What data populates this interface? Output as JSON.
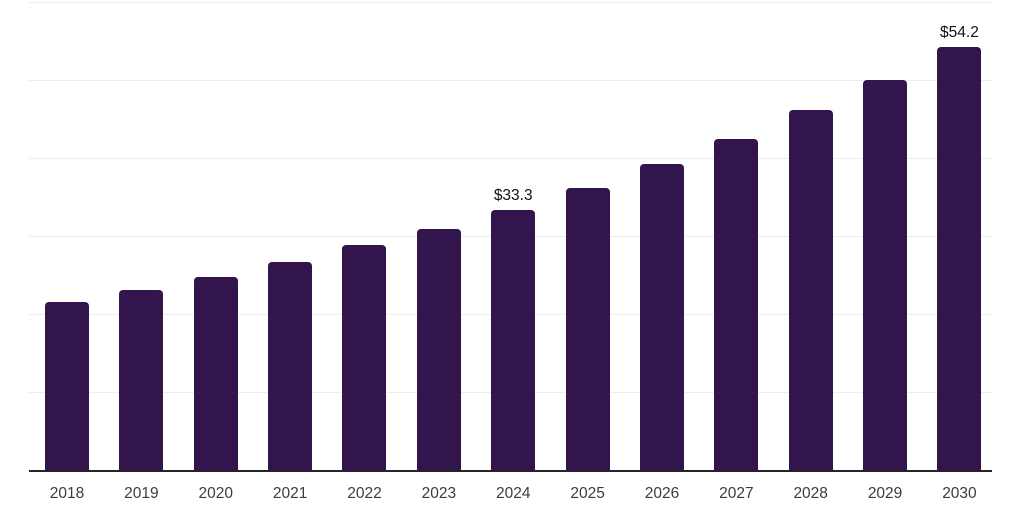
{
  "chart_data": {
    "type": "bar",
    "title": "",
    "xlabel": "",
    "ylabel": "",
    "categories": [
      "2018",
      "2019",
      "2020",
      "2021",
      "2022",
      "2023",
      "2024",
      "2025",
      "2026",
      "2027",
      "2028",
      "2029",
      "2030"
    ],
    "values": [
      21.5,
      23.1,
      24.8,
      26.7,
      28.8,
      30.9,
      33.3,
      36.1,
      39.2,
      42.5,
      46.1,
      50.0,
      54.2
    ],
    "data_labels": {
      "2024": "$33.3",
      "2030": "$54.2"
    },
    "ylim": [
      0,
      60
    ],
    "grid_step": 10,
    "grid": "horizontal-only",
    "y_tick_labels_visible": false,
    "legend": "none",
    "colors": {
      "bar_fill": "#33154d",
      "axis_line": "#26232e",
      "gridline": "#ededed",
      "data_label_text": "#121212",
      "tick_label_text": "#3c3c3c",
      "background": "#ffffff"
    }
  }
}
